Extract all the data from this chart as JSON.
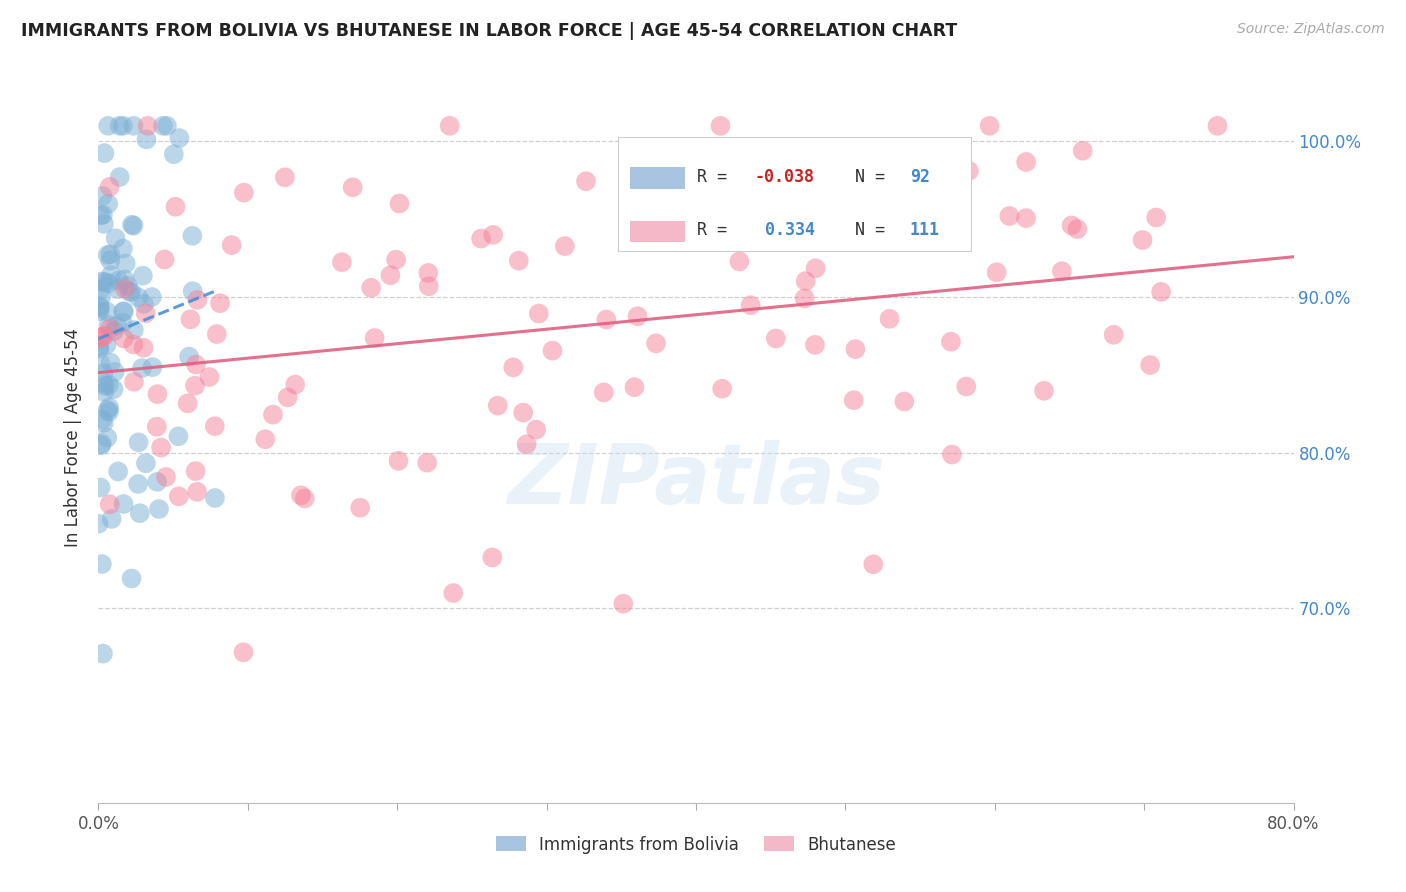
{
  "title": "IMMIGRANTS FROM BOLIVIA VS BHUTANESE IN LABOR FORCE | AGE 45-54 CORRELATION CHART",
  "source": "Source: ZipAtlas.com",
  "ylabel": "In Labor Force | Age 45-54",
  "x_min": 0.0,
  "x_max": 0.8,
  "y_min": 0.575,
  "y_max": 1.045,
  "bolivia_color": "#7bafd4",
  "bhutanese_color": "#f48098",
  "bolivia_legend_color": "#a8c4e0",
  "bhutanese_legend_color": "#f4b8c8",
  "bolivia_R": -0.038,
  "bolivia_N": 92,
  "bhutanese_R": 0.334,
  "bhutanese_N": 111,
  "watermark": "ZIPatlas",
  "background_color": "#ffffff",
  "grid_color": "#d0d0d0",
  "title_color": "#222222",
  "right_axis_color": "#4488cc",
  "label_color": "#4488cc",
  "bolivia_trend_color": "#4a90d9",
  "bhutanese_trend_color": "#e06080",
  "seed_bolivia": 42,
  "seed_bhutanese": 99
}
